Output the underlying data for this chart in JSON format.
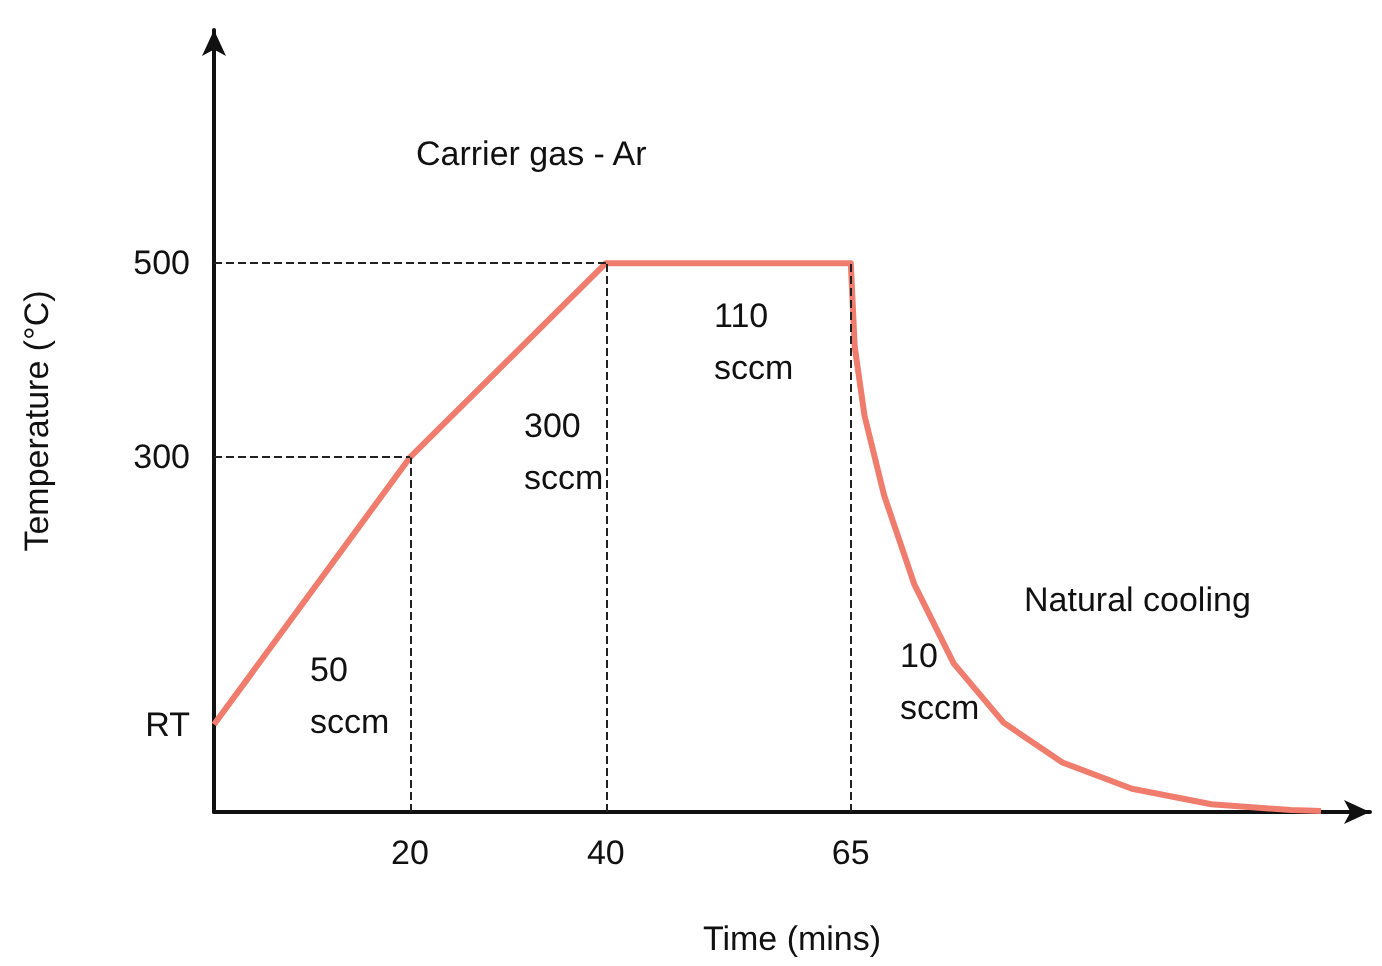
{
  "chart_data": {
    "type": "line",
    "xlabel": "Time (mins)",
    "ylabel": "Temperature (°C)",
    "x": [
      0,
      20,
      40,
      65,
      65.4,
      66.4,
      68.4,
      71.5,
      75.5,
      80.6,
      86.6,
      93.7,
      101.8,
      109.9,
      113
    ],
    "series": [
      {
        "color": "#ef7c6c",
        "values": [
          25,
          300,
          500,
          500,
          414,
          343,
          261,
          169,
          88,
          27,
          -14,
          -41,
          -57,
          -63,
          -64
        ]
      }
    ],
    "xlim": [
      0,
      118
    ],
    "xticks": [
      20,
      40,
      65
    ],
    "ylim": [
      -65,
      740
    ],
    "yticks": [
      {
        "value": 25,
        "label": "RT"
      },
      300,
      500
    ],
    "grid": false,
    "marker": "none",
    "line_style": "solid",
    "ref_lines": [
      {
        "axis": "x",
        "value": 20,
        "line_style": "dashed",
        "color": "#222222"
      },
      {
        "axis": "x",
        "value": 40,
        "line_style": "dashed",
        "color": "#222222"
      },
      {
        "axis": "x",
        "value": 65,
        "line_style": "dashed",
        "color": "#222222"
      },
      {
        "axis": "y",
        "value": 300,
        "line_style": "dashed",
        "color": "#222222"
      },
      {
        "axis": "y",
        "value": 500,
        "line_style": "dashed",
        "color": "#222222"
      }
    ],
    "annotations": [
      "Carrier gas - Ar",
      "50\nsccm",
      "300\nsccm",
      "110\nsccm",
      "10\nsccm",
      "Natural cooling"
    ]
  }
}
